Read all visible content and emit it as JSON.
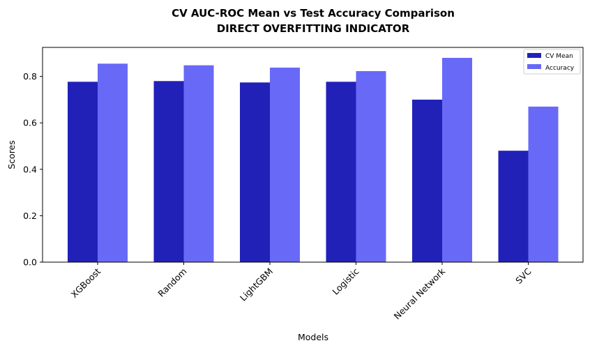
{
  "chart_data": {
    "type": "bar",
    "title": "CV AUC-ROC Mean vs Test Accuracy Comparison",
    "subtitle": "DIRECT OVERFITTING INDICATOR",
    "xlabel": "Models",
    "ylabel": "Scores",
    "categories": [
      "XGBoost",
      "Random",
      "LightGBM",
      "Logistic",
      "Neural Network",
      "SVC"
    ],
    "series": [
      {
        "name": "CV Mean",
        "color": "#2121b8",
        "values": [
          0.777,
          0.78,
          0.774,
          0.777,
          0.7,
          0.48
        ]
      },
      {
        "name": "Accuracy",
        "color": "#6969f7",
        "values": [
          0.855,
          0.848,
          0.838,
          0.823,
          0.88,
          0.67
        ]
      }
    ],
    "ylim": [
      0,
      0.925
    ],
    "yticks": [
      "0.0",
      "0.2",
      "0.4",
      "0.6",
      "0.8"
    ],
    "ytick_values": [
      0,
      0.2,
      0.4,
      0.6,
      0.8
    ],
    "grid": false,
    "legend_position": "top-right"
  }
}
